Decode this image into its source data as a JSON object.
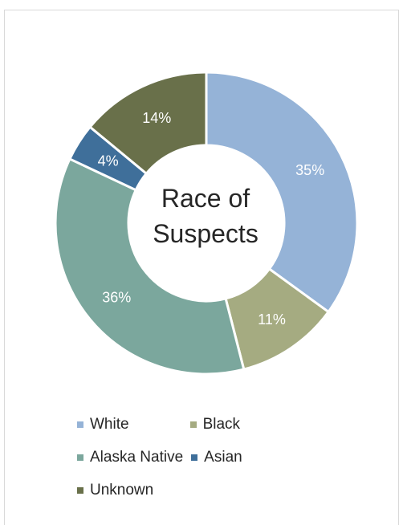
{
  "chart_data": {
    "type": "pie",
    "title": "Race of Suspects",
    "donut": true,
    "categories": [
      "White",
      "Black",
      "Alaska Native",
      "Asian",
      "Unknown"
    ],
    "values": [
      35,
      11,
      36,
      4,
      14
    ],
    "value_labels": [
      "35%",
      "11%",
      "36%",
      "4%",
      "14%"
    ],
    "colors": [
      "#95b3d7",
      "#a5ab81",
      "#7ba79d",
      "#3f6f9a",
      "#69704a"
    ],
    "legend_position": "bottom",
    "title_lines": [
      "Race of",
      "Suspects"
    ]
  },
  "legend": {
    "rows": [
      [
        {
          "label": "White",
          "color": "#95b3d7"
        },
        {
          "label": "Black",
          "color": "#a5ab81"
        }
      ],
      [
        {
          "label": "Alaska Native",
          "color": "#7ba79d"
        },
        {
          "label": "Asian",
          "color": "#3f6f9a"
        }
      ],
      [
        {
          "label": "Unknown",
          "color": "#69704a"
        }
      ]
    ]
  }
}
